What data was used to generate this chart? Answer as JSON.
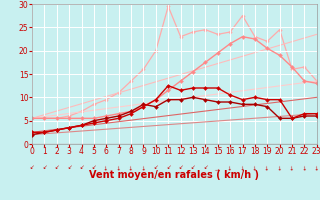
{
  "background_color": "#c8f0f0",
  "grid_color": "#ffffff",
  "xlabel": "Vent moyen/en rafales ( km/h )",
  "xlabel_color": "#cc0000",
  "xlabel_fontsize": 7,
  "tick_color": "#cc0000",
  "tick_fontsize": 5.5,
  "ylim": [
    0,
    30
  ],
  "xlim": [
    0,
    23
  ],
  "yticks": [
    0,
    5,
    10,
    15,
    20,
    25,
    30
  ],
  "xticks": [
    0,
    1,
    2,
    3,
    4,
    5,
    6,
    7,
    8,
    9,
    10,
    11,
    12,
    13,
    14,
    15,
    16,
    17,
    18,
    19,
    20,
    21,
    22,
    23
  ],
  "series": [
    {
      "name": "rafales_max",
      "x": [
        0,
        1,
        2,
        3,
        4,
        5,
        6,
        7,
        8,
        9,
        10,
        11,
        12,
        13,
        14,
        15,
        16,
        17,
        18,
        19,
        20,
        21,
        22,
        23
      ],
      "y": [
        5.5,
        5.5,
        5.5,
        6.0,
        7.0,
        8.5,
        9.5,
        11.0,
        13.5,
        16.0,
        20.0,
        29.5,
        23.0,
        24.0,
        24.5,
        23.5,
        24.0,
        27.5,
        23.0,
        22.0,
        24.5,
        16.0,
        16.5,
        13.5
      ],
      "color": "#ffaaaa",
      "lw": 0.9,
      "marker": "D",
      "ms": 1.8,
      "zorder": 1
    },
    {
      "name": "rafales_line1",
      "x": [
        0,
        23
      ],
      "y": [
        5.5,
        23.5
      ],
      "color": "#ffbbbb",
      "lw": 0.8,
      "marker": null,
      "ms": 0,
      "zorder": 1
    },
    {
      "name": "rafales_line2",
      "x": [
        0,
        23
      ],
      "y": [
        5.5,
        13.5
      ],
      "color": "#ffcccc",
      "lw": 0.8,
      "marker": null,
      "ms": 0,
      "zorder": 1
    },
    {
      "name": "rafales_mean",
      "x": [
        0,
        1,
        2,
        3,
        4,
        5,
        6,
        7,
        8,
        9,
        10,
        11,
        12,
        13,
        14,
        15,
        16,
        17,
        18,
        19,
        20,
        21,
        22,
        23
      ],
      "y": [
        5.5,
        5.5,
        5.5,
        5.5,
        5.5,
        5.5,
        6.0,
        6.5,
        7.0,
        8.0,
        9.5,
        11.5,
        13.5,
        15.5,
        17.5,
        19.5,
        21.5,
        23.0,
        22.5,
        20.5,
        19.0,
        16.5,
        13.5,
        13.0
      ],
      "color": "#ff8888",
      "lw": 1.0,
      "marker": "D",
      "ms": 2.0,
      "zorder": 2
    },
    {
      "name": "vent_line_upper",
      "x": [
        0,
        23
      ],
      "y": [
        2.5,
        10.0
      ],
      "color": "#dd6666",
      "lw": 0.8,
      "marker": null,
      "ms": 0,
      "zorder": 3
    },
    {
      "name": "vent_line_lower",
      "x": [
        0,
        23
      ],
      "y": [
        2.0,
        6.5
      ],
      "color": "#dd8888",
      "lw": 0.8,
      "marker": null,
      "ms": 0,
      "zorder": 3
    },
    {
      "name": "vent_max",
      "x": [
        0,
        1,
        2,
        3,
        4,
        5,
        6,
        7,
        8,
        9,
        10,
        11,
        12,
        13,
        14,
        15,
        16,
        17,
        18,
        19,
        20,
        21,
        22,
        23
      ],
      "y": [
        2.5,
        2.5,
        3.0,
        3.5,
        4.0,
        4.5,
        5.0,
        5.5,
        6.5,
        8.0,
        9.5,
        12.5,
        11.5,
        12.0,
        12.0,
        12.0,
        10.5,
        9.5,
        10.0,
        9.5,
        9.5,
        5.5,
        6.5,
        6.5
      ],
      "color": "#cc0000",
      "lw": 1.0,
      "marker": "D",
      "ms": 2.0,
      "zorder": 5
    },
    {
      "name": "vent_mean",
      "x": [
        0,
        1,
        2,
        3,
        4,
        5,
        6,
        7,
        8,
        9,
        10,
        11,
        12,
        13,
        14,
        15,
        16,
        17,
        18,
        19,
        20,
        21,
        22,
        23
      ],
      "y": [
        2.0,
        2.5,
        3.0,
        3.5,
        4.0,
        5.0,
        5.5,
        6.0,
        7.0,
        8.5,
        8.0,
        9.5,
        9.5,
        10.0,
        9.5,
        9.0,
        9.0,
        8.5,
        8.5,
        8.0,
        5.5,
        5.5,
        6.0,
        6.0
      ],
      "color": "#aa0000",
      "lw": 1.0,
      "marker": "D",
      "ms": 2.0,
      "zorder": 4
    }
  ],
  "wind_arrows": [
    "↙",
    "↙",
    "↙",
    "↙",
    "↙",
    "↙",
    "↓",
    "↓",
    "↓",
    "↓",
    "↙",
    "↙",
    "↙",
    "↙",
    "↙",
    "↗",
    "↓",
    "↓",
    "↓",
    "↓",
    "↓",
    "↓",
    "↓",
    "↓"
  ]
}
